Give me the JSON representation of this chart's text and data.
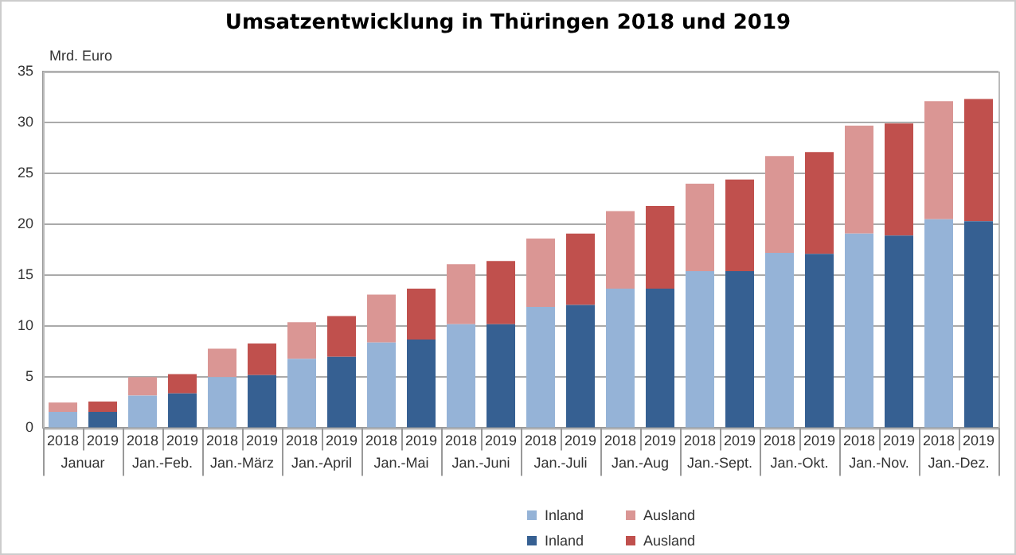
{
  "chart_data": {
    "type": "bar",
    "title": "Umsatzentwicklung in Thüringen 2018 und 2019",
    "ylabel": "Mrd. Euro",
    "stacked": true,
    "categories": [
      "2018",
      "2019",
      "2018",
      "2019",
      "2018",
      "2019",
      "2018",
      "2019",
      "2018",
      "2019",
      "2018",
      "2019",
      "2018",
      "2019",
      "2018",
      "2019",
      "2018",
      "2019",
      "2018",
      "2019",
      "2018",
      "2019",
      "2018",
      "2019"
    ],
    "annotations": [
      "Januar",
      "Jan.-Feb.",
      "Jan.-März",
      "Jan.-April",
      "Jan.-Mai",
      "Jan.-Juni",
      "Jan.-Juli",
      "Jan.-Aug",
      "Jan.-Sept.",
      "Jan.-Okt.",
      "Jan.-Nov.",
      "Jan.-Dez."
    ],
    "series": [
      {
        "name": "Inland",
        "color": "#95b3d7",
        "values": [
          1.6,
          null,
          3.2,
          null,
          5.0,
          null,
          6.8,
          null,
          8.4,
          null,
          10.2,
          null,
          11.9,
          null,
          13.7,
          null,
          15.4,
          null,
          17.2,
          null,
          19.1,
          null,
          20.5,
          null
        ]
      },
      {
        "name": "Ausland",
        "color": "#da9694",
        "values": [
          0.9,
          null,
          1.8,
          null,
          2.8,
          null,
          3.6,
          null,
          4.7,
          null,
          5.9,
          null,
          6.7,
          null,
          7.6,
          null,
          8.6,
          null,
          9.5,
          null,
          10.6,
          null,
          11.6,
          null
        ]
      },
      {
        "name": "Inland",
        "color": "#366092",
        "values": [
          null,
          1.6,
          null,
          3.4,
          null,
          5.2,
          null,
          7.0,
          null,
          8.7,
          null,
          10.2,
          null,
          12.1,
          null,
          13.7,
          null,
          15.4,
          null,
          17.1,
          null,
          18.9,
          null,
          20.3
        ]
      },
      {
        "name": "Ausland",
        "color": "#c0504d",
        "values": [
          null,
          1.0,
          null,
          1.9,
          null,
          3.1,
          null,
          4.0,
          null,
          5.0,
          null,
          6.2,
          null,
          7.0,
          null,
          8.1,
          null,
          9.0,
          null,
          10.0,
          null,
          11.0,
          null,
          12.0
        ]
      }
    ],
    "ylim": [
      0,
      35
    ],
    "yticks": [
      0,
      5,
      10,
      15,
      20,
      25,
      30,
      35
    ],
    "grid": "y",
    "legend": "bottom"
  }
}
